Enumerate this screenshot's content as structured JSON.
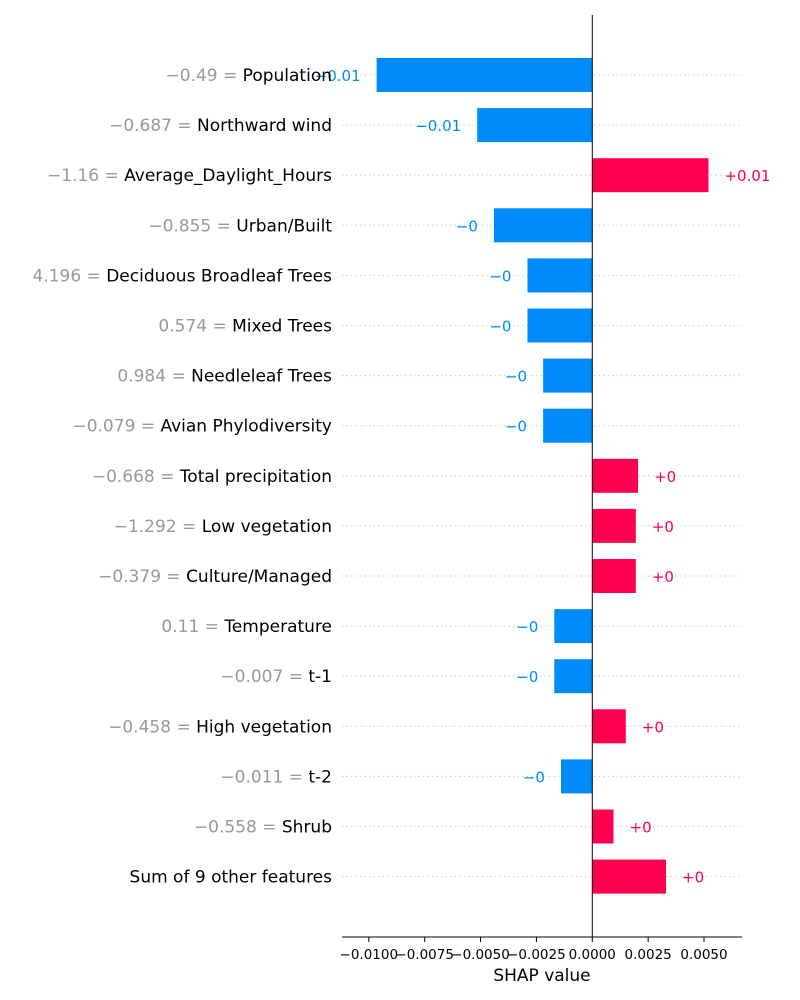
{
  "chart_data": {
    "type": "bar",
    "orientation": "horizontal",
    "title": "",
    "xlabel": "SHAP value",
    "ylabel": "",
    "xlim": [
      -0.0112,
      0.0067
    ],
    "grid": "dotted horizontal row guides",
    "x_ticks": [
      {
        "value": -0.01,
        "label": "−0.0100"
      },
      {
        "value": -0.0075,
        "label": "−0.0075"
      },
      {
        "value": -0.005,
        "label": "−0.0050"
      },
      {
        "value": -0.0025,
        "label": "−0.0025"
      },
      {
        "value": 0,
        "label": "0.0000"
      },
      {
        "value": 0.0025,
        "label": "0.0025"
      },
      {
        "value": 0.005,
        "label": "0.0050"
      }
    ],
    "features": [
      {
        "feature_value": "−0.49 =",
        "name": "Population",
        "shap": -0.00965,
        "label": "−0.01"
      },
      {
        "feature_value": "−0.687 =",
        "name": "Northward wind",
        "shap": -0.00515,
        "label": "−0.01"
      },
      {
        "feature_value": "−1.16 =",
        "name": "Average_Daylight_Hours",
        "shap": 0.0052,
        "label": "+0.01"
      },
      {
        "feature_value": "−0.855 =",
        "name": "Urban/Built",
        "shap": -0.0044,
        "label": "−0"
      },
      {
        "feature_value": "4.196 =",
        "name": "Deciduous Broadleaf Trees",
        "shap": -0.0029,
        "label": "−0"
      },
      {
        "feature_value": "0.574 =",
        "name": "Mixed Trees",
        "shap": -0.0029,
        "label": "−0"
      },
      {
        "feature_value": "0.984 =",
        "name": "Needleleaf Trees",
        "shap": -0.0022,
        "label": "−0"
      },
      {
        "feature_value": "−0.079 =",
        "name": "Avian Phylodiversity",
        "shap": -0.0022,
        "label": "−0"
      },
      {
        "feature_value": "−0.668 =",
        "name": "Total precipitation",
        "shap": 0.00205,
        "label": "+0"
      },
      {
        "feature_value": "−1.292 =",
        "name": "Low vegetation",
        "shap": 0.00195,
        "label": "+0"
      },
      {
        "feature_value": "−0.379 =",
        "name": "Culture/Managed",
        "shap": 0.00195,
        "label": "+0"
      },
      {
        "feature_value": "0.11 =",
        "name": "Temperature",
        "shap": -0.0017,
        "label": "−0"
      },
      {
        "feature_value": "−0.007 =",
        "name": "t-1",
        "shap": -0.0017,
        "label": "−0"
      },
      {
        "feature_value": "−0.458 =",
        "name": "High vegetation",
        "shap": 0.0015,
        "label": "+0"
      },
      {
        "feature_value": "−0.011 =",
        "name": "t-2",
        "shap": -0.0014,
        "label": "−0"
      },
      {
        "feature_value": "−0.558 =",
        "name": "Shrub",
        "shap": 0.00095,
        "label": "+0"
      },
      {
        "feature_value": "",
        "name": "Sum of 9 other features",
        "shap": 0.0033,
        "label": "+0"
      }
    ],
    "colors": {
      "positive": "#ff0051",
      "negative": "#008bfb",
      "feature_value": "#999999",
      "feature_name": "#000000",
      "grid": "#cccccc"
    }
  }
}
